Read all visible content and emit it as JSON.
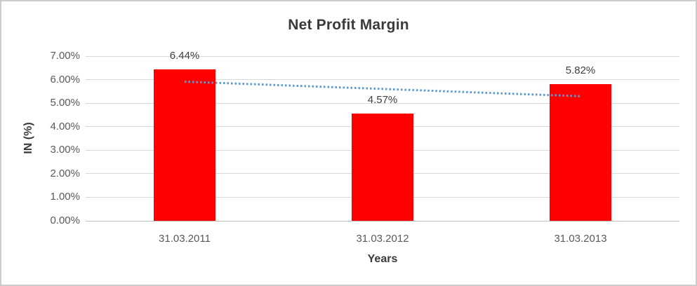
{
  "chart_data": {
    "type": "bar",
    "title": "Net Profit Margin",
    "xlabel": "Years",
    "ylabel": "IN (%)",
    "categories": [
      "31.03.2011",
      "31.03.2012",
      "31.03.2013"
    ],
    "values": [
      6.44,
      4.57,
      5.82
    ],
    "data_labels": [
      "6.44%",
      "4.57%",
      "5.82%"
    ],
    "y_tick_labels": [
      "7.00%",
      "6.00%",
      "5.00%",
      "4.00%",
      "3.00%",
      "2.00%",
      "1.00%",
      "0.00%"
    ],
    "y_tick_step": 1,
    "ylim": [
      0,
      7
    ],
    "grid": true,
    "legend": false,
    "trendline": {
      "type": "linear",
      "style": "dotted",
      "color": "#5B9BD5",
      "start_value": 5.92,
      "end_value": 5.3,
      "start_category_index": 0,
      "end_category_index": 2
    },
    "colors": {
      "bar": "#FF0000",
      "trendline": "#5B9BD5",
      "gridline": "#D9D9D9",
      "axis_line": "#BFBFBF",
      "title_text": "#3A3A3A",
      "tick_text": "#595959",
      "frame_border": "#CCCCCC"
    }
  }
}
